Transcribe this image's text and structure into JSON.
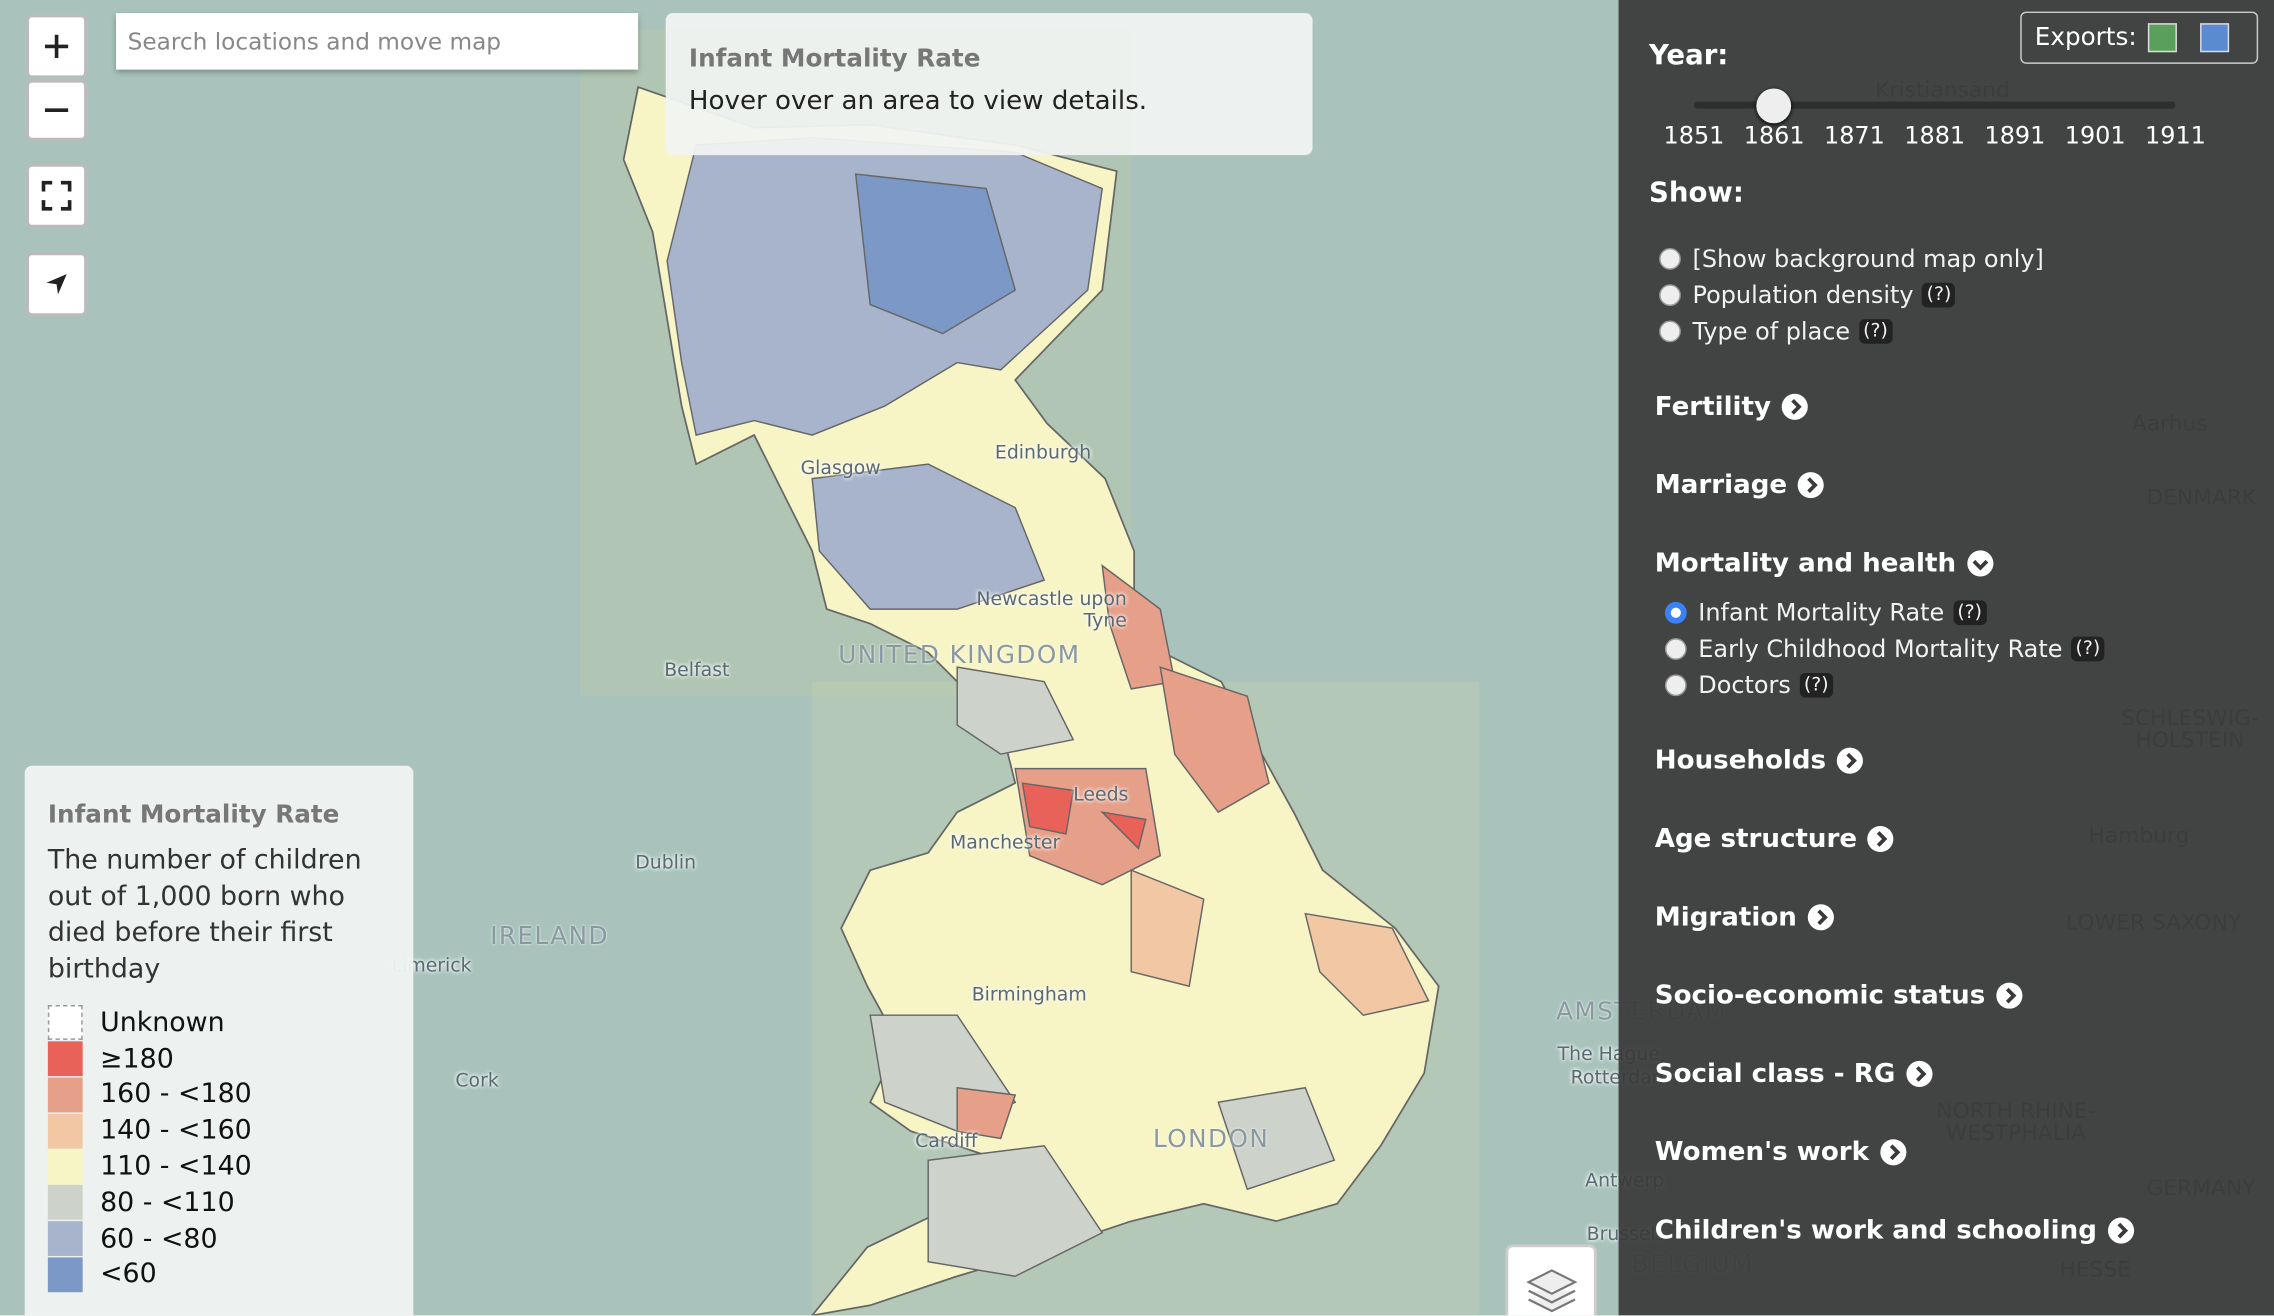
{
  "map": {
    "search_placeholder": "Search locations and move map",
    "labels": [
      "Glasgow",
      "Edinburgh",
      "Newcastle upon Tyne",
      "UNITED KINGDOM",
      "Belfast",
      "Dublin",
      "IRELAND",
      "Limerick",
      "Cork",
      "Leeds",
      "Manchester",
      "Birmingham",
      "Cardiff",
      "LONDON",
      "AMSTERDAM",
      "The Hague",
      "Rotterdam",
      "Antwerp",
      "Brussels",
      "BELGIUM",
      "Kristiansand",
      "Aarhus",
      "DENMARK",
      "SCHLESWIG-HOLSTEIN",
      "Hamburg",
      "LOWER SAXONY",
      "NORTH RHINE-WESTPHALIA",
      "GERMANY",
      "HESSE"
    ]
  },
  "info": {
    "title": "Infant Mortality Rate",
    "text": "Hover over an area to view details."
  },
  "legend": {
    "title": "Infant Mortality Rate",
    "description": "The number of children out of 1,000 born who died before their first birthday",
    "items": [
      {
        "label": "Unknown",
        "color": "#ffffff"
      },
      {
        "label": "≥180",
        "color": "#e8625a"
      },
      {
        "label": "160 - <180",
        "color": "#e69f88"
      },
      {
        "label": "140 - <160",
        "color": "#f2c8a4"
      },
      {
        "label": "110 - <140",
        "color": "#f7f4c6"
      },
      {
        "label": "80 - <110",
        "color": "#cdd2ca"
      },
      {
        "label": "60 - <80",
        "color": "#a7b4cb"
      },
      {
        "label": "<60",
        "color": "#7c98c6"
      }
    ]
  },
  "sidebar": {
    "exports": "Exports:",
    "year_label": "Year:",
    "years": [
      1851,
      1861,
      1871,
      1881,
      1891,
      1901,
      1911
    ],
    "selected_year": 1861,
    "show_label": "Show:",
    "show_options": [
      {
        "label": "[Show background map only]"
      },
      {
        "label": "Population density",
        "help": "(?)"
      },
      {
        "label": "Type of place",
        "help": "(?)"
      }
    ],
    "sections": [
      {
        "title": "Fertility"
      },
      {
        "title": "Marriage"
      },
      {
        "title": "Mortality and health",
        "options": [
          {
            "label": "Infant Mortality Rate",
            "help": "(?)",
            "selected": true
          },
          {
            "label": "Early Childhood Mortality Rate",
            "help": "(?)"
          },
          {
            "label": "Doctors",
            "help": "(?)"
          }
        ]
      },
      {
        "title": "Households"
      },
      {
        "title": "Age structure"
      },
      {
        "title": "Migration"
      },
      {
        "title": "Socio-economic status"
      },
      {
        "title": "Social class - RG"
      },
      {
        "title": "Women's work"
      },
      {
        "title": "Children's work and schooling"
      }
    ]
  }
}
